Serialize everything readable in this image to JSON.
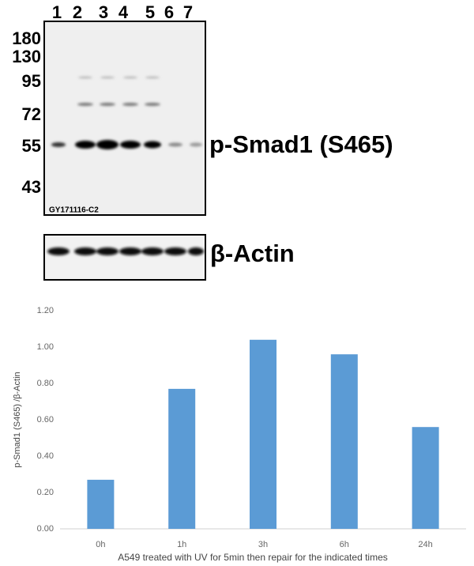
{
  "blot": {
    "lanes": [
      "1",
      "2",
      "3",
      "4",
      "5",
      "6",
      "7"
    ],
    "markers": [
      "180",
      "130",
      "95",
      "72",
      "55",
      "43"
    ],
    "target_label": "p-Smad1 (S465)",
    "sample_id": "GY171116-C2",
    "loading_label": "β-Actin"
  },
  "chart_data": {
    "type": "bar",
    "categories": [
      "0h",
      "1h",
      "3h",
      "6h",
      "24h"
    ],
    "values": [
      0.27,
      0.77,
      1.04,
      0.96,
      0.56
    ],
    "color": "#5b9bd5",
    "y_label": "p-Smad1 (S465) /β-Actin",
    "x_label": "A549 treated with UV for 5min then repair for the indicated  times",
    "ylim": [
      0,
      1.2
    ],
    "yticks": [
      {
        "value": 0,
        "label": "0.00"
      },
      {
        "value": 0.2,
        "label": "0.20"
      },
      {
        "value": 0.4,
        "label": "0.40"
      },
      {
        "value": 0.6,
        "label": "0.60"
      },
      {
        "value": 0.8,
        "label": "0.80"
      },
      {
        "value": 1.0,
        "label": "1.00"
      },
      {
        "value": 1.2,
        "label": "1.20"
      }
    ],
    "grid": false
  }
}
